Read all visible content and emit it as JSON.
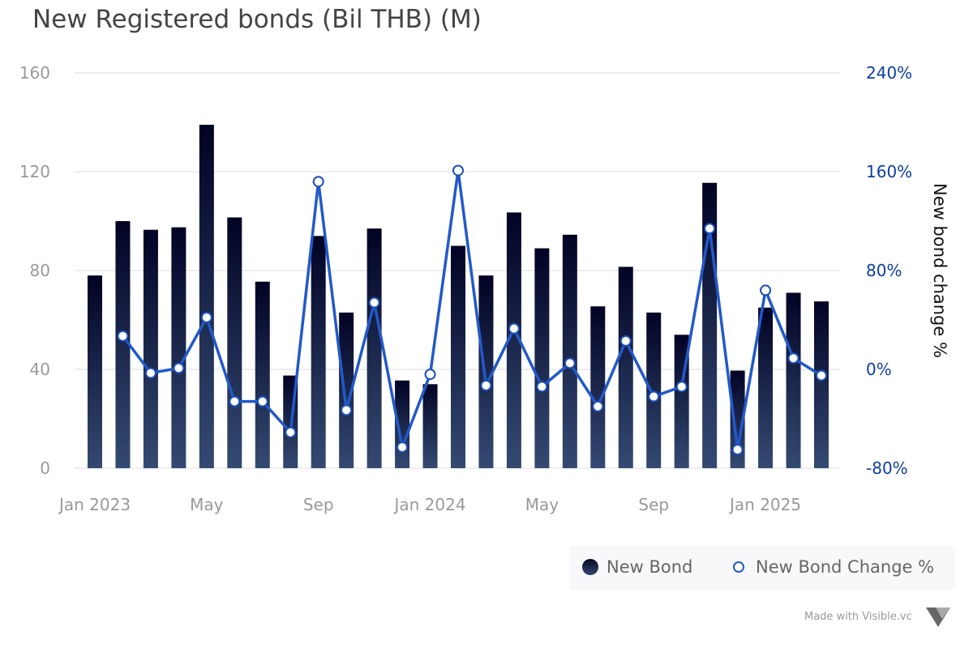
{
  "chart_data": {
    "type": "bar+line",
    "title": "New Registered bonds (Bil THB) (M)",
    "categories": [
      "Jan 2023",
      "Feb 2023",
      "Mar 2023",
      "Apr 2023",
      "May 2023",
      "Jun 2023",
      "Jul 2023",
      "Aug 2023",
      "Sep 2023",
      "Oct 2023",
      "Nov 2023",
      "Dec 2023",
      "Jan 2024",
      "Feb 2024",
      "Mar 2024",
      "Apr 2024",
      "May 2024",
      "Jun 2024",
      "Jul 2024",
      "Aug 2024",
      "Sep 2024",
      "Oct 2024",
      "Nov 2024",
      "Dec 2024",
      "Jan 2025",
      "Feb 2025",
      "Mar 2025"
    ],
    "x_tick_labels": [
      {
        "index": 0,
        "label": "Jan 2023"
      },
      {
        "index": 4,
        "label": "May"
      },
      {
        "index": 8,
        "label": "Sep"
      },
      {
        "index": 12,
        "label": "Jan 2024"
      },
      {
        "index": 16,
        "label": "May"
      },
      {
        "index": 20,
        "label": "Sep"
      },
      {
        "index": 24,
        "label": "Jan 2025"
      }
    ],
    "series": [
      {
        "name": "New Bond",
        "type": "bar",
        "axis": "left",
        "color": "#0b0f33",
        "values": [
          78,
          100,
          96.5,
          97.5,
          139,
          101.5,
          75.5,
          37.5,
          94,
          63,
          97,
          35.5,
          34,
          90,
          78,
          103.5,
          89,
          94.5,
          65.5,
          81.5,
          63,
          54,
          115.5,
          39.5,
          65,
          71,
          67.5
        ]
      },
      {
        "name": "New Bond Change %",
        "type": "line",
        "axis": "right",
        "color": "#2259c9",
        "values": [
          null,
          27,
          -3,
          1,
          42,
          -26,
          -26,
          -51,
          152,
          -33,
          54,
          -63,
          -4,
          161,
          -13,
          33,
          -14,
          5,
          -30,
          23,
          -22,
          -14,
          114,
          -65,
          64,
          9,
          -5
        ]
      }
    ],
    "left_axis": {
      "ylim": [
        0,
        160
      ],
      "ticks": [
        "0",
        "40",
        "80",
        "120",
        "160"
      ]
    },
    "right_axis": {
      "label": "New bond change %",
      "ylim": [
        -80,
        240
      ],
      "ticks": [
        "-80%",
        "0%",
        "80%",
        "160%",
        "240%"
      ],
      "color": "#0d3f9f"
    },
    "grid": true,
    "legend": {
      "placement": "bottom-right",
      "items": [
        "New Bond",
        "New Bond Change %"
      ]
    }
  },
  "credit": "Made with Visible.vc"
}
